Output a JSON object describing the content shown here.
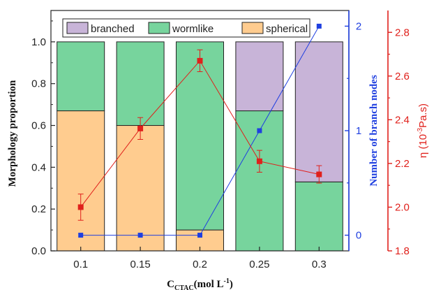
{
  "chart_data": {
    "type": "bar",
    "categories": [
      "0.1",
      "0.15",
      "0.2",
      "0.25",
      "0.3"
    ],
    "xlabel": {
      "main": "C",
      "sub": "CTAC",
      "rest": "(mol L",
      "sup": "-1",
      "end": ")"
    },
    "stacked_series": [
      {
        "name": "spherical",
        "color": "#FFCC8F",
        "values": [
          0.67,
          0.6,
          0.1,
          0,
          0
        ]
      },
      {
        "name": "wormlike",
        "color": "#77D49D",
        "values": [
          0.33,
          0.4,
          0.9,
          0.67,
          0.33
        ]
      },
      {
        "name": "branched",
        "color": "#C8B4D8",
        "values": [
          0,
          0,
          0,
          0.33,
          0.67
        ]
      }
    ],
    "legend_order": [
      "branched",
      "wormlike",
      "spherical"
    ],
    "legend_position": "top",
    "y_left": {
      "label": "Morphology proportion",
      "range": [
        0,
        1.15
      ],
      "ticks": [
        "0.0",
        "0.2",
        "0.4",
        "0.6",
        "0.8",
        "1.0"
      ],
      "color": "#111111"
    },
    "y_right_blue": {
      "label": "Number of branch nodes",
      "range": [
        -0.15,
        2.15
      ],
      "ticks": [
        "0",
        "1",
        "2"
      ],
      "color": "#1F3FE0"
    },
    "y_right_red": {
      "label_prefix": "η (10",
      "label_sup": "-3",
      "label_suffix": "Pa.s)",
      "range": [
        1.8,
        2.9
      ],
      "ticks": [
        "1.8",
        "2.0",
        "2.2",
        "2.4",
        "2.6",
        "2.8"
      ],
      "color": "#E0201B"
    },
    "branch_nodes": {
      "name": "Number of branch nodes",
      "color": "#1F3FE0",
      "values": [
        0,
        0,
        0,
        1,
        2
      ]
    },
    "viscosity": {
      "name": "η",
      "color": "#E0201B",
      "values": [
        2.0,
        2.36,
        2.67,
        2.21,
        2.15
      ],
      "errors": [
        0.06,
        0.05,
        0.05,
        0.05,
        0.04
      ]
    }
  }
}
